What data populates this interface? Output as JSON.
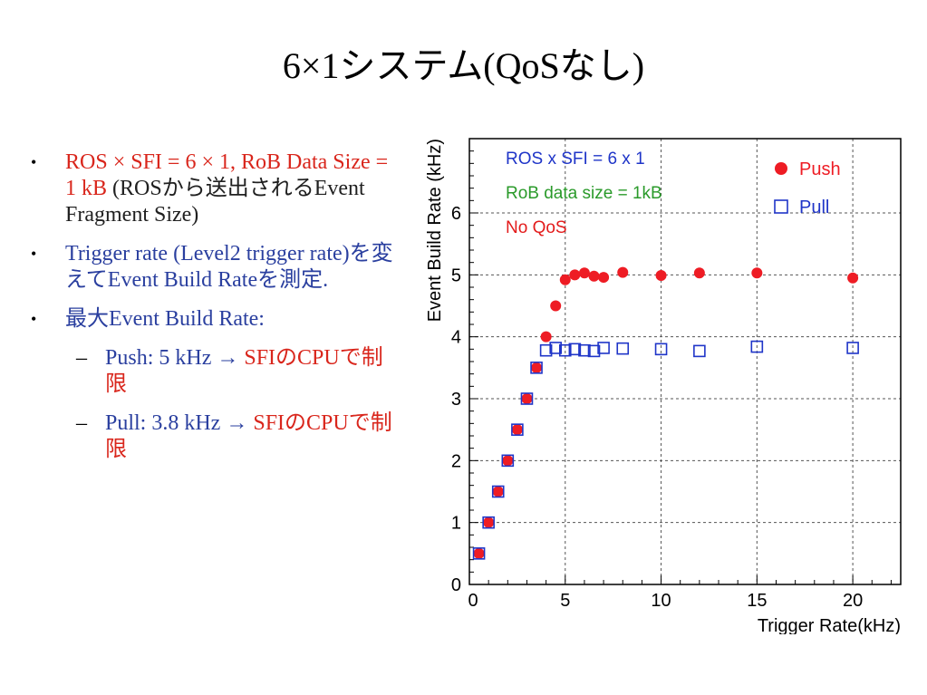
{
  "slide": {
    "title": "6×1システム(QoSなし)",
    "bullets": [
      {
        "red": "ROS × SFI = 6 × 1,  RoB Data Size  = 1 kB",
        "dark": " (ROSから送出されるEvent Fragment Size)"
      },
      {
        "blue": "Trigger rate (Level2 trigger rate)を変えてEvent Build Rateを測定."
      },
      {
        "blue": "最大Event Build Rate:"
      }
    ],
    "subbullets": [
      {
        "dash": "–",
        "blue": "Push: 5 kHz → ",
        "red": "SFIのCPUで制限"
      },
      {
        "dash": "–",
        "blue": "Pull:  3.8 kHz → ",
        "red": "SFIのCPUで制限"
      }
    ]
  },
  "chart_data": {
    "type": "scatter",
    "xlabel": "Trigger Rate(kHz)",
    "ylabel": "Event Build Rate (kHz)",
    "xlim": [
      0,
      22.5
    ],
    "ylim": [
      0,
      7.2
    ],
    "xticks": [
      0,
      5,
      10,
      15,
      20
    ],
    "yticks": [
      0,
      1,
      2,
      3,
      4,
      5,
      6
    ],
    "grid": true,
    "annotations": [
      {
        "text": "ROS x SFI = 6 x 1",
        "color": "#1f35c8"
      },
      {
        "text": "RoB data size = 1kB",
        "color": "#2a9a2a"
      },
      {
        "text": "No QoS",
        "color": "#e31b1b"
      }
    ],
    "legend": {
      "position": "top-right"
    },
    "series": [
      {
        "name": "Push",
        "marker": "filled-circle",
        "color": "#ee1c24",
        "x": [
          0.5,
          1,
          1.5,
          2,
          2.5,
          3,
          3.5,
          4,
          4.5,
          5,
          5.5,
          6,
          6.5,
          7,
          8,
          10,
          12,
          15,
          20
        ],
        "y": [
          0.5,
          1.0,
          1.5,
          2.0,
          2.5,
          3.0,
          3.5,
          4.0,
          4.5,
          4.92,
          5.0,
          5.03,
          4.98,
          4.96,
          5.04,
          4.99,
          5.03,
          5.03,
          4.95
        ]
      },
      {
        "name": "Pull",
        "marker": "open-square",
        "color": "#1f35c8",
        "x": [
          0.5,
          1,
          1.5,
          2,
          2.5,
          3,
          3.5,
          4,
          4.5,
          5,
          5.5,
          6,
          6.5,
          7,
          8,
          10,
          12,
          15,
          20
        ],
        "y": [
          0.5,
          1.0,
          1.5,
          2.0,
          2.5,
          3.0,
          3.5,
          3.78,
          3.82,
          3.78,
          3.8,
          3.78,
          3.77,
          3.82,
          3.81,
          3.8,
          3.77,
          3.84,
          3.82
        ]
      }
    ]
  }
}
